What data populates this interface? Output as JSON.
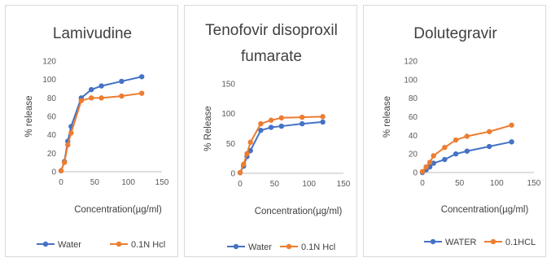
{
  "chart_data": [
    {
      "type": "line",
      "title": "Lamivudine",
      "xlabel": "Concentration(µg/ml)",
      "ylabel": "% release",
      "xlim": [
        0,
        150
      ],
      "ylim": [
        0,
        120
      ],
      "xticks": [
        0,
        50,
        100,
        150
      ],
      "yticks": [
        0,
        20,
        40,
        60,
        80,
        100,
        120
      ],
      "legend_position": "bottom",
      "series": [
        {
          "name": "Water",
          "color": "#4472c4",
          "x": [
            0,
            5,
            10,
            15,
            30,
            45,
            60,
            90,
            120
          ],
          "y": [
            1,
            11,
            33,
            49,
            80,
            89,
            93,
            98,
            103
          ]
        },
        {
          "name": "0.1N Hcl",
          "color": "#ed7d31",
          "x": [
            0,
            5,
            10,
            15,
            30,
            45,
            60,
            90,
            120
          ],
          "y": [
            1,
            10,
            29,
            42,
            77,
            80,
            80,
            82,
            85
          ]
        }
      ]
    },
    {
      "type": "line",
      "title": "Tenofovir disoproxil fumarate",
      "title_lines": [
        "Tenofovir disoproxil",
        "fumarate"
      ],
      "xlabel": "Concentration(µg/ml)",
      "ylabel": "% Release",
      "xlim": [
        0,
        150
      ],
      "ylim": [
        0,
        150
      ],
      "xticks": [
        0,
        50,
        100,
        150
      ],
      "yticks": [
        0,
        50,
        100,
        150
      ],
      "legend_position": "bottom",
      "series": [
        {
          "name": "Water",
          "color": "#4472c4",
          "x": [
            0,
            5,
            10,
            15,
            30,
            45,
            60,
            90,
            120
          ],
          "y": [
            1,
            12,
            28,
            38,
            72,
            77,
            79,
            83,
            86
          ]
        },
        {
          "name": "0.1N Hcl",
          "color": "#ed7d31",
          "x": [
            0,
            5,
            10,
            15,
            30,
            45,
            60,
            90,
            120
          ],
          "y": [
            1,
            15,
            33,
            52,
            83,
            89,
            93,
            94,
            95
          ]
        }
      ]
    },
    {
      "type": "line",
      "title": "Dolutegravir",
      "xlabel": "Concentration(µg/ml)",
      "ylabel": "% release",
      "xlim": [
        0,
        150
      ],
      "ylim": [
        0,
        120
      ],
      "xticks": [
        0,
        50,
        100,
        150
      ],
      "yticks": [
        0,
        20,
        40,
        60,
        80,
        100,
        120
      ],
      "legend_position": "bottom",
      "series": [
        {
          "name": "WATER",
          "color": "#4472c4",
          "x": [
            0,
            5,
            10,
            15,
            30,
            45,
            60,
            90,
            120
          ],
          "y": [
            0,
            3,
            6,
            10,
            14,
            20,
            23,
            28,
            33
          ]
        },
        {
          "name": "0.1HCL",
          "color": "#ed7d31",
          "x": [
            0,
            5,
            10,
            15,
            30,
            45,
            60,
            90,
            120
          ],
          "y": [
            1,
            6,
            11,
            18,
            27,
            35,
            39,
            44,
            51
          ]
        }
      ]
    }
  ]
}
